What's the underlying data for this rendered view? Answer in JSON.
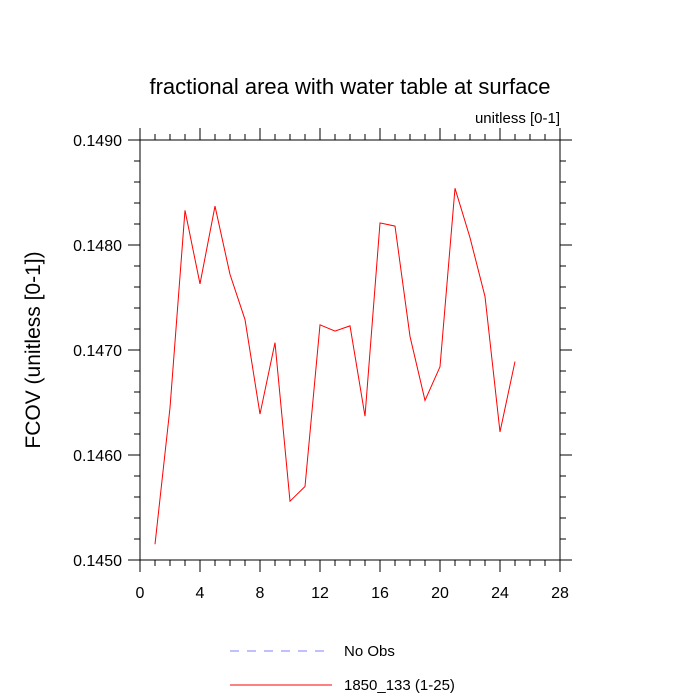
{
  "chart_data": {
    "type": "line",
    "title": "fractional area with water table at surface",
    "units_label": "unitless [0-1]",
    "ylabel": "FCOV  (unitless [0-1])",
    "xlabel": "",
    "xlim": [
      0,
      28
    ],
    "ylim": [
      0.145,
      0.149
    ],
    "x_ticks": [
      0,
      4,
      8,
      12,
      16,
      20,
      24,
      28
    ],
    "x_tick_labels": [
      "0",
      "4",
      "8",
      "12",
      "16",
      "20",
      "24",
      "28"
    ],
    "y_ticks": [
      0.145,
      0.146,
      0.147,
      0.148,
      0.149
    ],
    "y_tick_labels": [
      "0.1450",
      "0.1460",
      "0.1470",
      "0.1480",
      "0.1490"
    ],
    "legend_position": "bottom-center",
    "series": [
      {
        "name": "No Obs",
        "color": "#8080ff",
        "dashed": true,
        "x": [],
        "y": []
      },
      {
        "name": "1850_133 (1-25)",
        "color": "#ff0000",
        "dashed": false,
        "x": [
          1,
          2,
          3,
          4,
          5,
          6,
          7,
          8,
          9,
          10,
          11,
          12,
          13,
          14,
          15,
          16,
          17,
          18,
          19,
          20,
          21,
          22,
          23,
          24,
          25
        ],
        "y": [
          0.14515,
          0.14645,
          0.14833,
          0.14763,
          0.14837,
          0.14772,
          0.14729,
          0.14639,
          0.14707,
          0.14556,
          0.1457,
          0.14724,
          0.14718,
          0.14723,
          0.14637,
          0.14821,
          0.14818,
          0.14713,
          0.14652,
          0.14684,
          0.14854,
          0.14807,
          0.14751,
          0.14622,
          0.14689
        ]
      }
    ]
  }
}
